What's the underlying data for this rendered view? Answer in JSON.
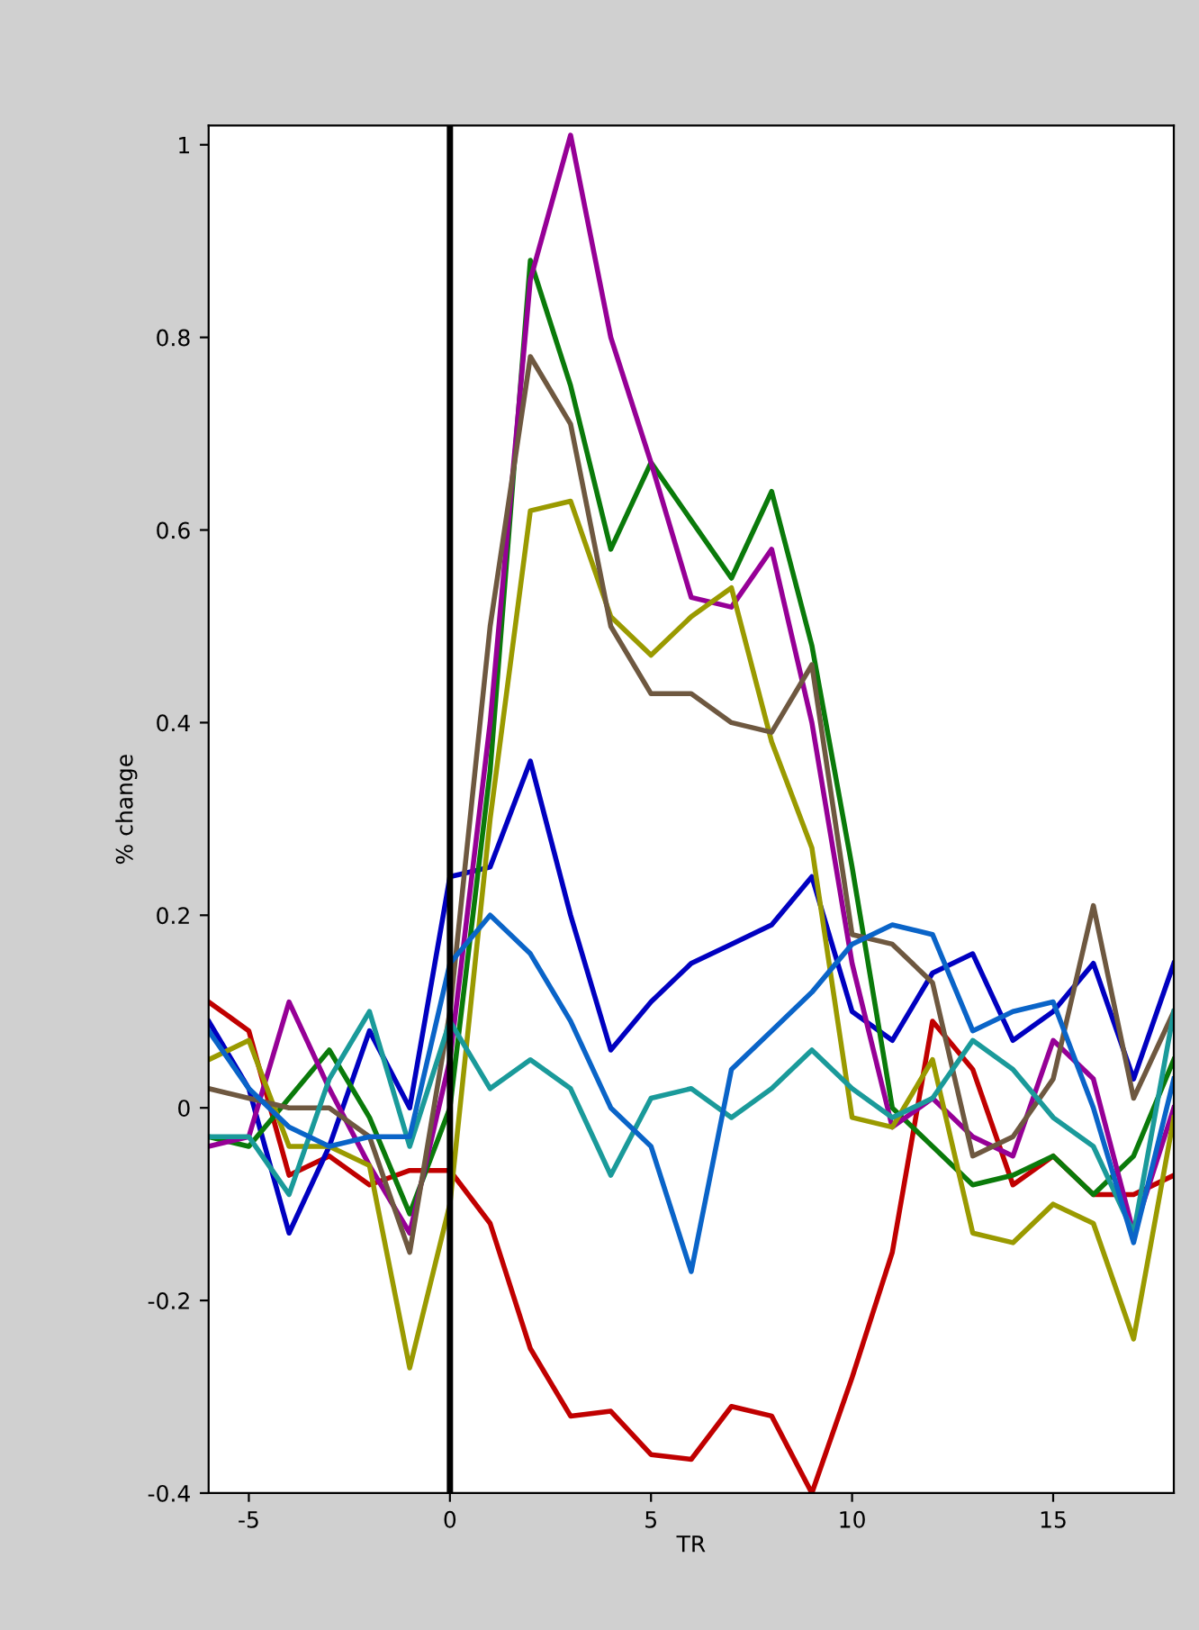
{
  "chart_data": {
    "type": "line",
    "xlabel": "TR",
    "ylabel": "% change",
    "x": [
      -6,
      -5,
      -4,
      -3,
      -2,
      -1,
      0,
      1,
      2,
      3,
      4,
      5,
      6,
      7,
      8,
      9,
      10,
      11,
      12,
      13,
      14,
      15,
      16,
      17,
      18
    ],
    "series": [
      {
        "color": "#c00000",
        "values": [
          0.11,
          0.08,
          -0.07,
          -0.05,
          -0.08,
          -0.065,
          -0.065,
          -0.12,
          -0.25,
          -0.32,
          -0.315,
          -0.36,
          -0.365,
          -0.31,
          -0.32,
          -0.4,
          -0.28,
          -0.15,
          0.09,
          0.04,
          -0.08,
          -0.05,
          -0.09,
          -0.09,
          -0.07
        ]
      },
      {
        "color": "#0000c0",
        "values": [
          0.09,
          0.02,
          -0.13,
          -0.04,
          0.08,
          0.0,
          0.24,
          0.25,
          0.36,
          0.2,
          0.06,
          0.11,
          0.15,
          0.17,
          0.19,
          0.24,
          0.1,
          0.07,
          0.14,
          0.16,
          0.07,
          0.1,
          0.15,
          0.03,
          0.15
        ]
      },
      {
        "color": "#0a7a0a",
        "values": [
          -0.03,
          -0.04,
          0.01,
          0.06,
          -0.01,
          -0.11,
          0.0,
          0.35,
          0.88,
          0.75,
          0.58,
          0.67,
          0.61,
          0.55,
          0.64,
          0.48,
          0.25,
          0.0,
          -0.04,
          -0.08,
          -0.07,
          -0.05,
          -0.09,
          -0.05,
          0.05
        ]
      },
      {
        "color": "#960096",
        "values": [
          -0.04,
          -0.03,
          0.11,
          0.02,
          -0.06,
          -0.13,
          0.05,
          0.4,
          0.86,
          1.01,
          0.8,
          0.67,
          0.53,
          0.52,
          0.58,
          0.4,
          0.15,
          -0.02,
          0.01,
          -0.03,
          -0.05,
          0.07,
          0.03,
          -0.13,
          0.0
        ]
      },
      {
        "color": "#9a9a00",
        "values": [
          0.05,
          0.07,
          -0.04,
          -0.04,
          -0.06,
          -0.27,
          -0.1,
          0.3,
          0.62,
          0.63,
          0.51,
          0.47,
          0.51,
          0.54,
          0.38,
          0.27,
          -0.01,
          -0.02,
          0.05,
          -0.13,
          -0.14,
          -0.1,
          -0.12,
          -0.24,
          -0.01
        ]
      },
      {
        "color": "#6e5840",
        "values": [
          0.02,
          0.01,
          0.0,
          0.0,
          -0.03,
          -0.15,
          0.1,
          0.5,
          0.78,
          0.71,
          0.5,
          0.43,
          0.43,
          0.4,
          0.39,
          0.46,
          0.18,
          0.17,
          0.13,
          -0.05,
          -0.03,
          0.03,
          0.21,
          0.01,
          0.1
        ]
      },
      {
        "color": "#1a9a9a",
        "values": [
          -0.03,
          -0.03,
          -0.09,
          0.03,
          0.1,
          -0.04,
          0.09,
          0.02,
          0.05,
          0.02,
          -0.07,
          0.01,
          0.02,
          -0.01,
          0.02,
          0.06,
          0.02,
          -0.01,
          0.01,
          0.07,
          0.04,
          -0.01,
          -0.04,
          -0.13,
          0.1
        ]
      },
      {
        "color": "#0a64c8",
        "values": [
          0.08,
          0.02,
          -0.02,
          -0.04,
          -0.03,
          -0.03,
          0.15,
          0.2,
          0.16,
          0.09,
          0.0,
          -0.04,
          -0.17,
          0.04,
          0.08,
          0.12,
          0.17,
          0.19,
          0.18,
          0.08,
          0.1,
          0.11,
          0.0,
          -0.14,
          0.03
        ]
      }
    ],
    "xlim": [
      -6,
      18
    ],
    "xticks": [
      -5,
      0,
      5,
      10,
      15
    ],
    "ylim": [
      -0.4,
      1.02
    ],
    "yticks": [
      -0.4,
      -0.2,
      0,
      0.2,
      0.4,
      0.6,
      0.8,
      1
    ],
    "ref_lines": [
      {
        "axis": "x",
        "value": 0,
        "color": "#000000",
        "line_style": "solid"
      }
    ],
    "grid": false,
    "legend": false
  }
}
